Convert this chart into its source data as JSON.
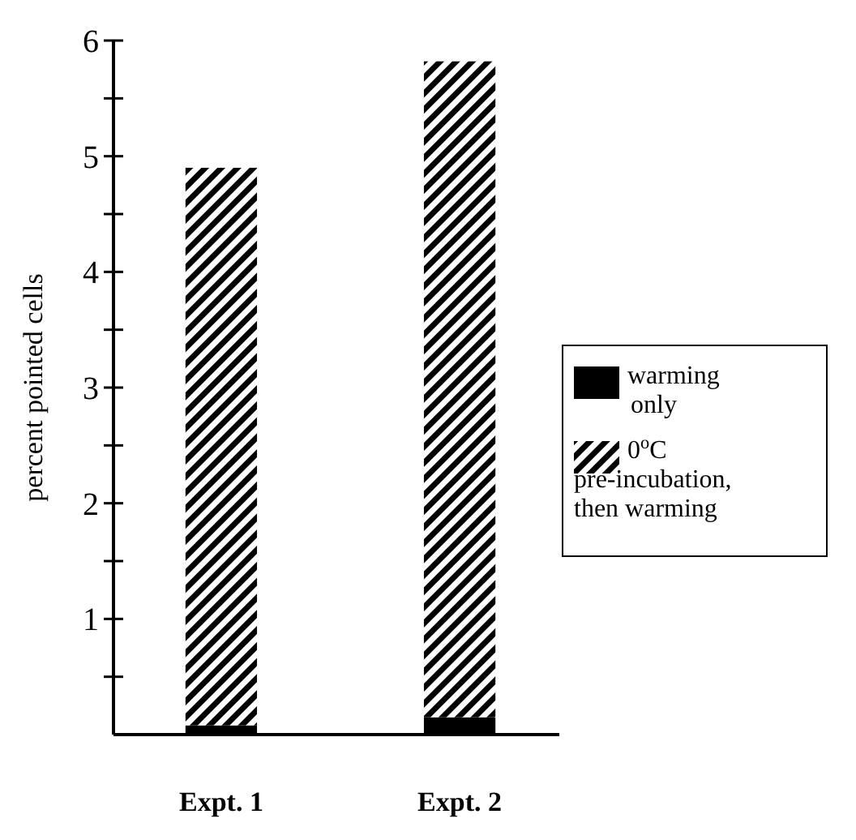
{
  "chart_data": {
    "type": "bar",
    "stacked": true,
    "ylabel": "percent pointed cells",
    "categories": [
      "Expt. 1",
      "Expt. 2"
    ],
    "series": [
      {
        "name": "warming only",
        "color": "#000000",
        "values": [
          0.08,
          0.15
        ]
      },
      {
        "name": "0$^{o}$C pre-incubation, then warming",
        "color": "#000000",
        "values": [
          4.82,
          5.67
        ]
      }
    ],
    "ylim": [
      0,
      6
    ],
    "yticks": [
      {
        "value": 0.5,
        "label": null
      },
      1,
      {
        "value": 1.5,
        "label": null
      },
      2,
      {
        "value": 2.5,
        "label": null
      },
      3,
      {
        "value": 3.5,
        "label": null
      },
      4,
      {
        "value": 4.5,
        "label": null
      },
      5,
      {
        "value": 5.5,
        "label": null
      },
      6
    ],
    "legend": "right",
    "grid": false
  }
}
